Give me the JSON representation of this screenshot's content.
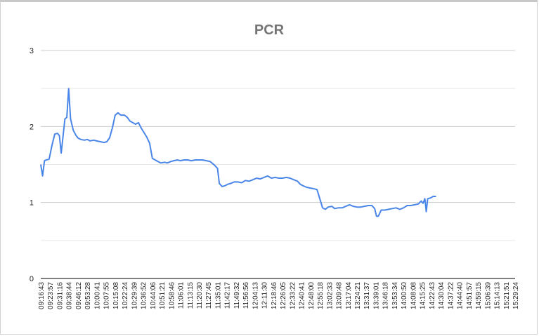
{
  "chart_data": {
    "type": "line",
    "title": "PCR",
    "xlabel": "",
    "ylabel": "",
    "ylim": [
      0,
      3
    ],
    "y_ticks": [
      "0",
      "1",
      "2",
      "3"
    ],
    "grid": true,
    "colors": {
      "line": "#4a86e8",
      "grid": "#d9d9d9",
      "axis": "#333333",
      "title": "#757575"
    },
    "x_tick_labels": [
      "09:16:43",
      "09:23:57",
      "09:31:16",
      "09:38:44",
      "09:46:12",
      "09:53:28",
      "10:00:41",
      "10:07:55",
      "10:15:08",
      "10:22:24",
      "10:29:39",
      "10:36:52",
      "10:44:06",
      "10:51:21",
      "10:58:46",
      "11:06:01",
      "11:13:15",
      "11:20:30",
      "11:27:45",
      "11:35:01",
      "11:42:17",
      "11:49:32",
      "11:56:56",
      "12:04:13",
      "12:11:30",
      "12:18:46",
      "12:26:05",
      "12:33:22",
      "12:40:41",
      "12:48:00",
      "12:55:18",
      "13:02:33",
      "13:09:48",
      "13:17:04",
      "13:24:21",
      "13:31:37",
      "13:39:01",
      "13:46:18",
      "13:53:34",
      "14:00:50",
      "14:08:08",
      "14:15:25",
      "14:22:43",
      "14:30:04",
      "14:37:22",
      "14:44:40",
      "14:51:57",
      "14:59:15",
      "15:06:39",
      "15:14:13",
      "15:21:51",
      "15:29:24"
    ],
    "series": [
      {
        "values": [
          [
            0,
            1.5
          ],
          [
            0.2,
            1.35
          ],
          [
            0.4,
            1.55
          ],
          [
            0.6,
            1.56
          ],
          [
            0.9,
            1.57
          ],
          [
            1.2,
            1.75
          ],
          [
            1.5,
            1.9
          ],
          [
            1.8,
            1.91
          ],
          [
            2.0,
            1.88
          ],
          [
            2.2,
            1.65
          ],
          [
            2.4,
            1.88
          ],
          [
            2.6,
            2.1
          ],
          [
            2.8,
            2.12
          ],
          [
            3.0,
            2.5
          ],
          [
            3.2,
            2.1
          ],
          [
            3.5,
            1.95
          ],
          [
            3.8,
            1.88
          ],
          [
            4.0,
            1.85
          ],
          [
            4.3,
            1.83
          ],
          [
            4.7,
            1.82
          ],
          [
            5.0,
            1.83
          ],
          [
            5.3,
            1.81
          ],
          [
            5.7,
            1.82
          ],
          [
            6.0,
            1.81
          ],
          [
            6.4,
            1.8
          ],
          [
            6.8,
            1.79
          ],
          [
            7.1,
            1.8
          ],
          [
            7.4,
            1.85
          ],
          [
            7.7,
            1.98
          ],
          [
            8.0,
            2.15
          ],
          [
            8.3,
            2.18
          ],
          [
            8.6,
            2.15
          ],
          [
            9.0,
            2.15
          ],
          [
            9.3,
            2.12
          ],
          [
            9.6,
            2.07
          ],
          [
            9.9,
            2.05
          ],
          [
            10.2,
            2.03
          ],
          [
            10.5,
            2.05
          ],
          [
            10.8,
            1.98
          ],
          [
            11.1,
            1.92
          ],
          [
            11.4,
            1.86
          ],
          [
            11.7,
            1.78
          ],
          [
            12.0,
            1.58
          ],
          [
            12.3,
            1.56
          ],
          [
            12.6,
            1.54
          ],
          [
            12.9,
            1.52
          ],
          [
            13.3,
            1.53
          ],
          [
            13.6,
            1.52
          ],
          [
            14.0,
            1.54
          ],
          [
            14.3,
            1.55
          ],
          [
            14.7,
            1.56
          ],
          [
            15.0,
            1.55
          ],
          [
            15.4,
            1.56
          ],
          [
            15.8,
            1.56
          ],
          [
            16.2,
            1.55
          ],
          [
            16.6,
            1.56
          ],
          [
            17.0,
            1.56
          ],
          [
            17.4,
            1.56
          ],
          [
            17.8,
            1.55
          ],
          [
            18.2,
            1.54
          ],
          [
            18.6,
            1.5
          ],
          [
            19.0,
            1.45
          ],
          [
            19.2,
            1.25
          ],
          [
            19.5,
            1.21
          ],
          [
            19.8,
            1.22
          ],
          [
            20.1,
            1.24
          ],
          [
            20.4,
            1.25
          ],
          [
            20.8,
            1.27
          ],
          [
            21.2,
            1.27
          ],
          [
            21.6,
            1.26
          ],
          [
            22.0,
            1.29
          ],
          [
            22.4,
            1.28
          ],
          [
            22.8,
            1.3
          ],
          [
            23.2,
            1.32
          ],
          [
            23.6,
            1.31
          ],
          [
            24.0,
            1.33
          ],
          [
            24.4,
            1.35
          ],
          [
            24.8,
            1.32
          ],
          [
            25.2,
            1.33
          ],
          [
            25.6,
            1.32
          ],
          [
            26.0,
            1.32
          ],
          [
            26.4,
            1.33
          ],
          [
            26.8,
            1.32
          ],
          [
            27.2,
            1.3
          ],
          [
            27.6,
            1.28
          ],
          [
            27.9,
            1.24
          ],
          [
            28.2,
            1.22
          ],
          [
            28.6,
            1.2
          ],
          [
            29.0,
            1.19
          ],
          [
            29.4,
            1.18
          ],
          [
            29.7,
            1.17
          ],
          [
            30.0,
            1.05
          ],
          [
            30.3,
            0.93
          ],
          [
            30.6,
            0.91
          ],
          [
            30.9,
            0.94
          ],
          [
            31.3,
            0.95
          ],
          [
            31.6,
            0.92
          ],
          [
            32.0,
            0.93
          ],
          [
            32.4,
            0.93
          ],
          [
            32.8,
            0.95
          ],
          [
            33.2,
            0.97
          ],
          [
            33.6,
            0.95
          ],
          [
            34.0,
            0.94
          ],
          [
            34.4,
            0.94
          ],
          [
            34.8,
            0.95
          ],
          [
            35.2,
            0.96
          ],
          [
            35.6,
            0.96
          ],
          [
            35.9,
            0.92
          ],
          [
            36.1,
            0.82
          ],
          [
            36.3,
            0.82
          ],
          [
            36.6,
            0.9
          ],
          [
            37.0,
            0.9
          ],
          [
            37.4,
            0.91
          ],
          [
            37.8,
            0.92
          ],
          [
            38.2,
            0.93
          ],
          [
            38.6,
            0.91
          ],
          [
            39.0,
            0.93
          ],
          [
            39.4,
            0.96
          ],
          [
            39.8,
            0.96
          ],
          [
            40.2,
            0.97
          ],
          [
            40.6,
            0.98
          ],
          [
            40.9,
            1.02
          ],
          [
            41.1,
            0.99
          ],
          [
            41.3,
            1.05
          ],
          [
            41.45,
            0.88
          ],
          [
            41.6,
            1.05
          ],
          [
            41.9,
            1.06
          ],
          [
            42.2,
            1.08
          ],
          [
            42.5,
            1.08
          ]
        ]
      }
    ]
  }
}
